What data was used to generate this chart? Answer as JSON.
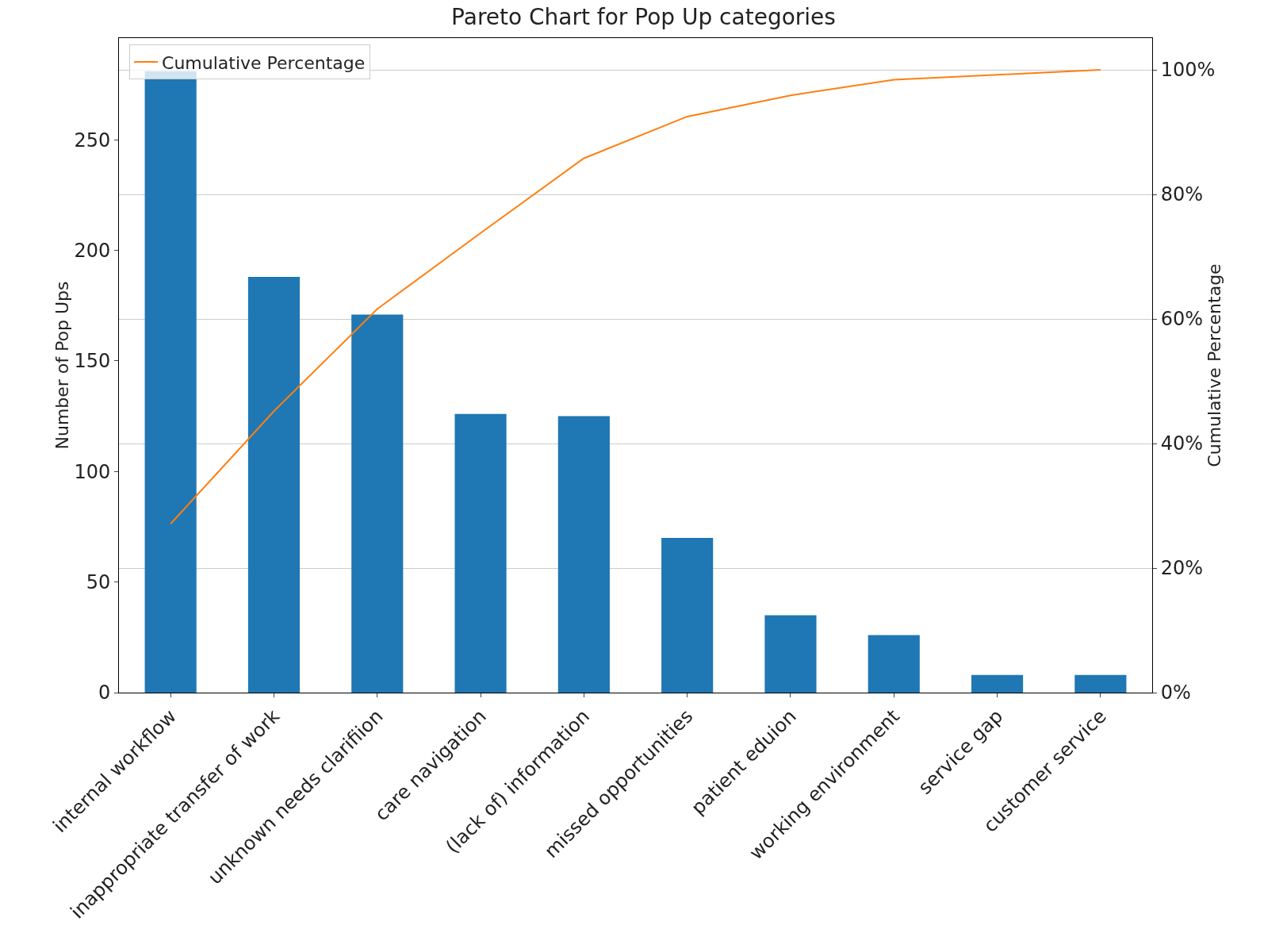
{
  "chart_data": {
    "type": "bar",
    "title": "Pareto Chart for Pop Up categories",
    "ylabel": "Number of Pop Ups",
    "y2label": "Cumulative Percentage",
    "categories": [
      "internal workflow",
      "inappropriate transfer of work",
      "unknown needs clarifiion",
      "care navigation",
      "(lack of) information",
      "missed opportunities",
      "patient eduion",
      "working environment",
      "service gap",
      "customer service"
    ],
    "series": [
      {
        "color": "#1f77b4",
        "values": [
          281,
          188,
          171,
          126,
          125,
          70,
          35,
          26,
          8,
          8
        ]
      },
      {
        "type": "line",
        "name": "Cumulative Percentage",
        "color": "#ff7f0e",
        "axis": "y2",
        "values": [
          27.1,
          45.2,
          61.6,
          73.8,
          85.8,
          92.5,
          95.9,
          98.4,
          99.2,
          100
        ]
      }
    ],
    "ylim": [
      0,
      296
    ],
    "yticks": [
      0,
      50,
      100,
      150,
      200,
      250
    ],
    "y2lim": [
      0,
      105.1
    ],
    "y2ticks": [
      {
        "value": 0,
        "label": "0%"
      },
      {
        "value": 20,
        "label": "20%"
      },
      {
        "value": 40,
        "label": "40%"
      },
      {
        "value": 60,
        "label": "60%"
      },
      {
        "value": 80,
        "label": "80%"
      },
      {
        "value": 100,
        "label": "100%"
      }
    ],
    "grid": "y",
    "legend": "top left",
    "marker": "none",
    "line_style": "solid"
  }
}
